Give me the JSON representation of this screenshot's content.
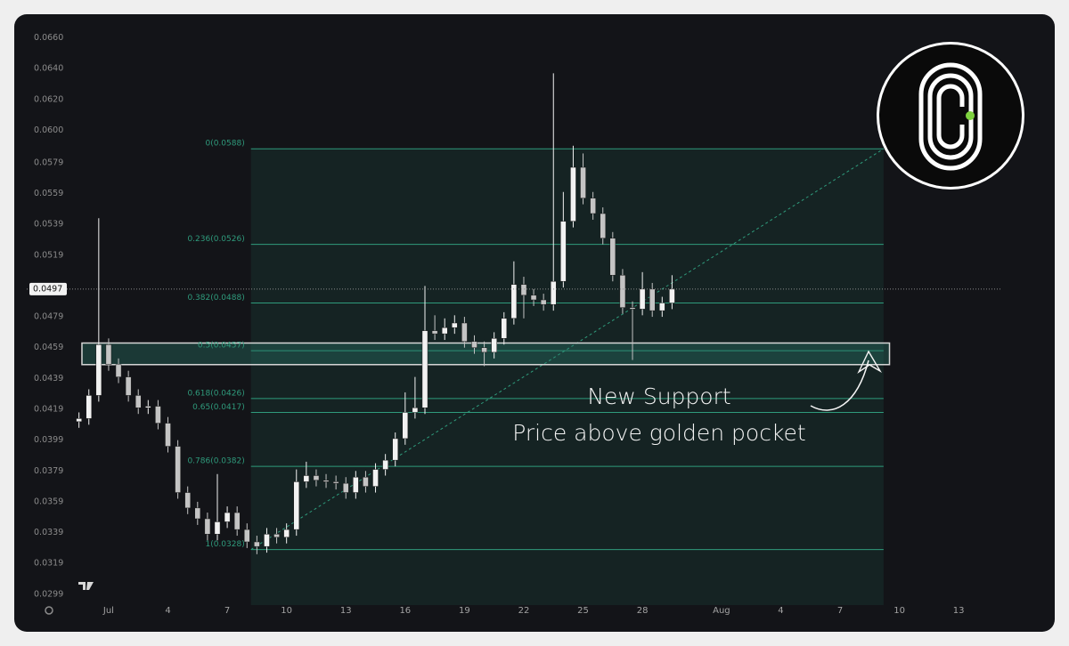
{
  "chart_data": {
    "type": "candlestick",
    "x": [
      -0.5,
      0,
      0.5,
      1,
      1.5,
      2,
      2.5,
      3,
      3.5,
      4,
      4.5,
      5,
      5.5,
      6,
      6.5,
      7,
      7.5,
      8,
      8.5,
      9,
      9.5,
      10,
      10.5,
      11,
      11.5,
      12,
      12.5,
      13,
      13.5,
      14,
      14.5,
      15,
      15.5,
      16,
      16.5,
      17,
      17.5,
      18,
      18.5,
      19,
      19.5,
      20,
      20.5,
      21,
      21.5,
      22,
      22.5,
      23,
      23.5,
      24,
      24.5,
      25,
      25.5,
      26,
      26.5,
      27,
      27.5,
      28,
      28.5,
      29,
      29.5
    ],
    "open": [
      0.0411,
      0.0413,
      0.0428,
      0.0461,
      0.0448,
      0.044,
      0.0428,
      0.042,
      0.0421,
      0.041,
      0.0395,
      0.0365,
      0.0355,
      0.0348,
      0.0338,
      0.0346,
      0.0352,
      0.0341,
      0.0333,
      0.033,
      0.0338,
      0.0336,
      0.0341,
      0.0372,
      0.0376,
      0.0373,
      0.0372,
      0.0371,
      0.0365,
      0.0375,
      0.0369,
      0.038,
      0.0386,
      0.04,
      0.0417,
      0.042,
      0.047,
      0.0468,
      0.0472,
      0.0475,
      0.0463,
      0.0459,
      0.0456,
      0.0465,
      0.0478,
      0.05,
      0.0493,
      0.049,
      0.0487,
      0.0502,
      0.0541,
      0.0576,
      0.0556,
      0.0546,
      0.053,
      0.0506,
      0.0485,
      0.0484,
      0.0497,
      0.0483,
      0.0488
    ],
    "high": [
      0.0417,
      0.0432,
      0.0543,
      0.0465,
      0.0452,
      0.0444,
      0.0432,
      0.0425,
      0.0425,
      0.0414,
      0.0399,
      0.0369,
      0.0359,
      0.0352,
      0.0377,
      0.0356,
      0.0356,
      0.0345,
      0.0337,
      0.0342,
      0.0342,
      0.0345,
      0.038,
      0.0385,
      0.038,
      0.0377,
      0.0376,
      0.0375,
      0.0379,
      0.0379,
      0.0384,
      0.039,
      0.0404,
      0.043,
      0.044,
      0.0499,
      0.048,
      0.0478,
      0.048,
      0.0479,
      0.0467,
      0.0463,
      0.0469,
      0.0482,
      0.0515,
      0.0505,
      0.0497,
      0.0494,
      0.0637,
      0.056,
      0.059,
      0.0585,
      0.056,
      0.055,
      0.0534,
      0.051,
      0.0489,
      0.0508,
      0.0501,
      0.0492,
      0.0506
    ],
    "low": [
      0.0407,
      0.0409,
      0.0424,
      0.0444,
      0.0436,
      0.0424,
      0.0416,
      0.0416,
      0.0406,
      0.0391,
      0.0361,
      0.0351,
      0.0344,
      0.0334,
      0.0334,
      0.0342,
      0.0337,
      0.0329,
      0.0325,
      0.0326,
      0.0332,
      0.0332,
      0.0337,
      0.0368,
      0.0369,
      0.0368,
      0.0367,
      0.0361,
      0.0361,
      0.0365,
      0.0365,
      0.0376,
      0.0382,
      0.0396,
      0.0413,
      0.0416,
      0.0464,
      0.0464,
      0.0468,
      0.0459,
      0.0455,
      0.0447,
      0.0452,
      0.0461,
      0.0474,
      0.0478,
      0.0486,
      0.0483,
      0.0483,
      0.0498,
      0.0537,
      0.0552,
      0.0542,
      0.0526,
      0.0502,
      0.0481,
      0.0451,
      0.048,
      0.0479,
      0.0479,
      0.0484
    ],
    "close": [
      0.0413,
      0.0428,
      0.0461,
      0.0448,
      0.044,
      0.0428,
      0.042,
      0.0421,
      0.041,
      0.0395,
      0.0365,
      0.0355,
      0.0348,
      0.0338,
      0.0346,
      0.0352,
      0.0341,
      0.0333,
      0.033,
      0.0338,
      0.0336,
      0.0341,
      0.0372,
      0.0376,
      0.0373,
      0.0372,
      0.0371,
      0.0365,
      0.0375,
      0.0369,
      0.038,
      0.0386,
      0.04,
      0.0417,
      0.042,
      0.047,
      0.0468,
      0.0472,
      0.0475,
      0.0463,
      0.0459,
      0.0456,
      0.0465,
      0.0478,
      0.05,
      0.0493,
      0.049,
      0.0487,
      0.0502,
      0.0541,
      0.0576,
      0.0556,
      0.0546,
      0.053,
      0.0506,
      0.0485,
      0.0484,
      0.0497,
      0.0483,
      0.0488,
      0.0497
    ],
    "up_color": "#f2f2f2",
    "down_color": "#c4c4c4",
    "xlim": [
      -0.98,
      46.2
    ],
    "xticks": [
      {
        "value": 1,
        "label": "Jul"
      },
      4,
      7,
      10,
      13,
      16,
      19,
      22,
      25,
      28,
      {
        "value": 32,
        "label": "Aug"
      },
      {
        "value": 35,
        "label": "4"
      },
      {
        "value": 38,
        "label": "7"
      },
      {
        "value": 41,
        "label": "10"
      },
      {
        "value": 44,
        "label": "13"
      }
    ],
    "ylim": [
      0.0292,
      0.0673
    ],
    "yticks": [
      {
        "value": 0.066,
        "label": "0.0660"
      },
      {
        "value": 0.064,
        "label": "0.0640"
      },
      {
        "value": 0.062,
        "label": "0.0620"
      },
      {
        "value": 0.06,
        "label": "0.0600"
      },
      0.0579,
      0.0559,
      0.0539,
      0.0519,
      0.0479,
      0.0459,
      0.0439,
      0.0419,
      0.0399,
      0.0379,
      0.0359,
      0.0339,
      0.0319,
      0.0299
    ],
    "current_price": 0.0497,
    "fib_x_start": 8.2,
    "fib_x_end": 40.2,
    "fib_color": "#2f9b7c",
    "fib_levels": [
      {
        "value": 0.0588,
        "label": "0(0.0588)"
      },
      {
        "value": 0.0526,
        "label": "0.236(0.0526)"
      },
      {
        "value": 0.0488,
        "label": "0.382(0.0488)"
      },
      {
        "value": 0.0457,
        "label": "0.5(0.0457)"
      },
      {
        "value": 0.0426,
        "label": "0.618(0.0426)"
      },
      {
        "value": 0.0417,
        "label": "0.65(0.0417)"
      },
      {
        "value": 0.0382,
        "label": "0.786(0.0382)"
      },
      {
        "value": 0.0328,
        "label": "1(0.0328)"
      }
    ],
    "support_zone": {
      "x_start": -0.35,
      "x_end": 40.5,
      "low": 0.0448,
      "high": 0.0462
    },
    "annotations": [
      "New Support",
      "Price above golden pocket"
    ]
  }
}
